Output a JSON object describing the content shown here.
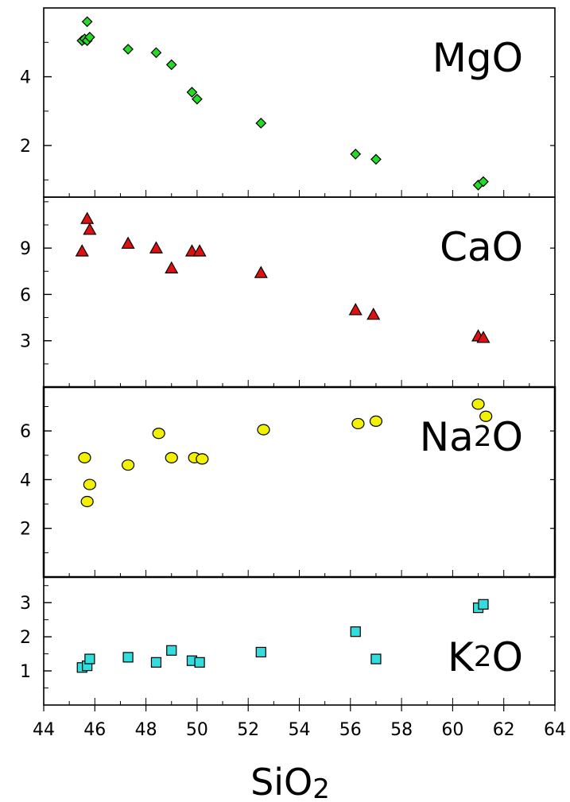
{
  "chart_data": {
    "type": "scatter",
    "xlabel": "SiO2",
    "xlim": [
      44,
      64
    ],
    "x_ticks": [
      44,
      46,
      48,
      50,
      52,
      54,
      56,
      58,
      60,
      62,
      64
    ],
    "grid": false,
    "panels": [
      {
        "name": "MgO",
        "marker": "diamond",
        "color": "#22dd22",
        "ylim": [
          0.5,
          6
        ],
        "y_ticks": [
          2,
          4
        ],
        "x": [
          45.5,
          45.6,
          45.7,
          45.7,
          45.8,
          47.3,
          48.4,
          49.0,
          49.8,
          50.0,
          52.5,
          56.2,
          57.0,
          61.0,
          61.2
        ],
        "y": [
          5.05,
          5.1,
          5.6,
          5.05,
          5.15,
          4.8,
          4.7,
          4.35,
          3.55,
          3.35,
          2.65,
          1.75,
          1.6,
          0.85,
          0.95
        ]
      },
      {
        "name": "CaO",
        "marker": "triangle",
        "color": "#dd1111",
        "ylim": [
          0,
          12.3
        ],
        "y_ticks": [
          3,
          6,
          9
        ],
        "x": [
          45.5,
          45.7,
          45.8,
          47.3,
          48.4,
          49.0,
          49.8,
          50.1,
          52.5,
          56.2,
          56.9,
          61.0,
          61.2
        ],
        "y": [
          8.8,
          10.9,
          10.2,
          9.3,
          9.0,
          7.7,
          8.8,
          8.8,
          7.4,
          5.0,
          4.7,
          3.3,
          3.2
        ]
      },
      {
        "name": "Na2O",
        "marker": "circle",
        "color": "#f2f200",
        "ylim": [
          0,
          7.8
        ],
        "y_ticks": [
          2,
          4,
          6
        ],
        "x": [
          45.6,
          45.7,
          45.8,
          47.3,
          48.5,
          49.0,
          49.9,
          50.2,
          52.6,
          56.3,
          57.0,
          61.0,
          61.3
        ],
        "y": [
          4.9,
          3.1,
          3.8,
          4.6,
          5.9,
          4.9,
          4.9,
          4.85,
          6.05,
          6.3,
          6.4,
          7.1,
          6.6
        ]
      },
      {
        "name": "K2O",
        "marker": "square",
        "color": "#33dddd",
        "ylim": [
          0,
          3.75
        ],
        "y_ticks": [
          1,
          2,
          3
        ],
        "x": [
          45.5,
          45.7,
          45.8,
          47.3,
          48.4,
          49.0,
          49.8,
          50.1,
          52.5,
          56.2,
          57.0,
          61.0,
          61.2
        ],
        "y": [
          1.1,
          1.15,
          1.35,
          1.4,
          1.25,
          1.6,
          1.3,
          1.25,
          1.55,
          2.15,
          1.35,
          2.85,
          2.95
        ]
      }
    ]
  }
}
